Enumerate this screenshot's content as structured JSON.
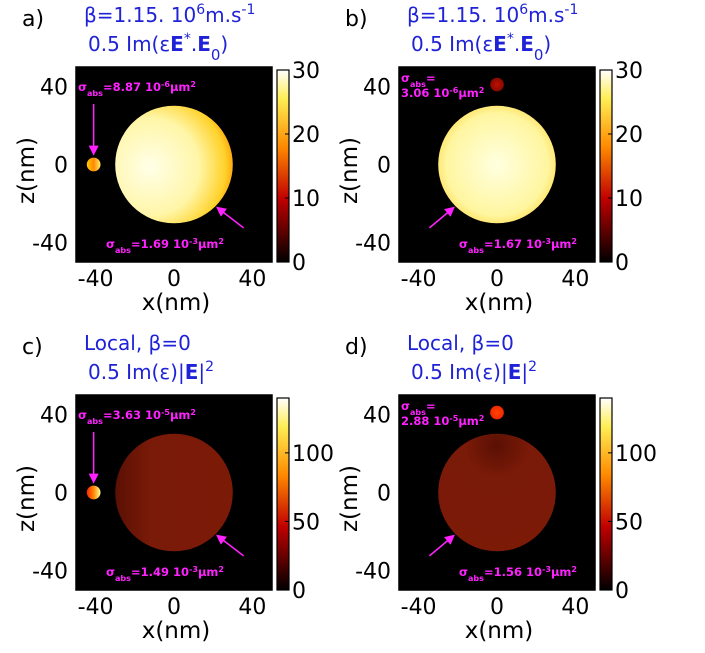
{
  "figure": {
    "colors": {
      "annotation": "#ff22ff",
      "title": "#1f22d6",
      "frame": "#000000"
    }
  },
  "chart_data": [
    {
      "type": "heatmap",
      "panel_label": "a)",
      "title_line1": "β=1.15. 10⁶m.s⁻¹",
      "title_line2": "0.5 Im(εE*.E₀)",
      "xlabel": "x(nm)",
      "ylabel": "z(nm)",
      "xlim": [
        -50,
        50
      ],
      "ylim": [
        -50,
        50
      ],
      "xticks": [
        "-40",
        "0",
        "40"
      ],
      "yticks": [
        "40",
        "0",
        "-40"
      ],
      "colorbar": {
        "range": [
          0,
          30
        ],
        "ticks": [
          "30",
          "20",
          "10",
          "0"
        ],
        "colormap": "hot"
      },
      "objects": [
        {
          "name": "small sphere",
          "center": [
            -41,
            0
          ],
          "radius": 3.5,
          "value": 22
        },
        {
          "name": "large sphere",
          "center": [
            0,
            0
          ],
          "radius": 30,
          "value": 28
        }
      ],
      "annotations": [
        {
          "text": "σabs=8.87 10⁻⁶μm²",
          "target": "small sphere"
        },
        {
          "text": "σabs=1.69 10⁻³μm²",
          "target": "large sphere"
        }
      ]
    },
    {
      "type": "heatmap",
      "panel_label": "b)",
      "title_line1": "β=1.15. 10⁶m.s⁻¹",
      "title_line2": "0.5 Im(εE*.E₀)",
      "xlabel": "x(nm)",
      "ylabel": "z(nm)",
      "xlim": [
        -50,
        50
      ],
      "ylim": [
        -50,
        50
      ],
      "xticks": [
        "-40",
        "0",
        "40"
      ],
      "yticks": [
        "40",
        "0",
        "-40"
      ],
      "colorbar": {
        "range": [
          0,
          30
        ],
        "ticks": [
          "30",
          "20",
          "10",
          "0"
        ],
        "colormap": "hot"
      },
      "objects": [
        {
          "name": "small sphere",
          "center": [
            0,
            41
          ],
          "radius": 3.5,
          "value": 8
        },
        {
          "name": "large sphere",
          "center": [
            0,
            0
          ],
          "radius": 30,
          "value": 28
        }
      ],
      "annotations": [
        {
          "line1": "σabs=",
          "line2": "3.06 10⁻⁶μm²",
          "target": "small sphere"
        },
        {
          "text": "σabs=1.67 10⁻³μm²",
          "target": "large sphere"
        }
      ]
    },
    {
      "type": "heatmap",
      "panel_label": "c)",
      "title_line1": "Local, β=0",
      "title_line2": "0.5 Im(ε)|E|²",
      "xlabel": "x(nm)",
      "ylabel": "z(nm)",
      "xlim": [
        -50,
        50
      ],
      "ylim": [
        -50,
        50
      ],
      "xticks": [
        "-40",
        "0",
        "40"
      ],
      "yticks": [
        "40",
        "0",
        "-40"
      ],
      "colorbar": {
        "range": [
          0,
          140
        ],
        "ticks": [
          "100",
          "50",
          "0"
        ],
        "colormap": "hot"
      },
      "objects": [
        {
          "name": "small sphere",
          "center": [
            -41,
            0
          ],
          "radius": 3.5,
          "value": 110
        },
        {
          "name": "large sphere",
          "center": [
            0,
            0
          ],
          "radius": 30,
          "value": 35
        }
      ],
      "annotations": [
        {
          "text": "σabs=3.63 10⁻⁵μm²",
          "target": "small sphere"
        },
        {
          "text": "σabs=1.49 10⁻³μm²",
          "target": "large sphere"
        }
      ]
    },
    {
      "type": "heatmap",
      "panel_label": "d)",
      "title_line1": "Local, β=0",
      "title_line2": "0.5 Im(ε)|E|²",
      "xlabel": "x(nm)",
      "ylabel": "z(nm)",
      "xlim": [
        -50,
        50
      ],
      "ylim": [
        -50,
        50
      ],
      "xticks": [
        "-40",
        "0",
        "40"
      ],
      "yticks": [
        "40",
        "0",
        "-40"
      ],
      "colorbar": {
        "range": [
          0,
          140
        ],
        "ticks": [
          "100",
          "50",
          "0"
        ],
        "colormap": "hot"
      },
      "objects": [
        {
          "name": "small sphere",
          "center": [
            0,
            41
          ],
          "radius": 3.5,
          "value": 75
        },
        {
          "name": "large sphere",
          "center": [
            0,
            0
          ],
          "radius": 30,
          "value": 35
        }
      ],
      "annotations": [
        {
          "line1": "σabs=",
          "line2": "2.88 10⁻⁵μm²",
          "target": "small sphere"
        },
        {
          "text": "σabs=1.56 10⁻³μm²",
          "target": "large sphere"
        }
      ]
    }
  ]
}
